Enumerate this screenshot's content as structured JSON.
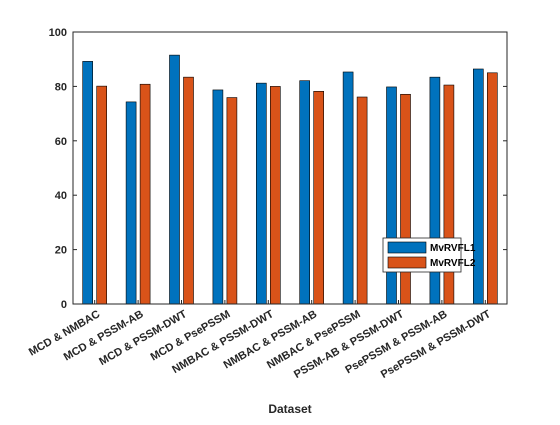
{
  "chart_data": {
    "type": "bar",
    "title": "",
    "xlabel": "Dataset",
    "ylabel": "",
    "ylim": [
      0,
      100
    ],
    "yticks": [
      0,
      20,
      40,
      60,
      80,
      100
    ],
    "grid": false,
    "legend_position": "bottom-right",
    "categories": [
      "MCD & NMBAC",
      "MCD & PSSM-AB",
      "MCD & PSSM-DWT",
      "MCD & PsePSSM",
      "NMBAC & PSSM-DWT",
      "NMBAC & PSSM-AB",
      "NMBAC & PsePSSM",
      "PSSM-AB & PSSM-DWT",
      "PsePSSM & PSSM-AB",
      "PsePSSM & PSSM-DWT"
    ],
    "series": [
      {
        "name": "MvRVFL1",
        "color": "#0072BD",
        "values": [
          89.2,
          74.3,
          91.5,
          78.7,
          81.2,
          82.1,
          85.3,
          79.8,
          83.4,
          86.4
        ]
      },
      {
        "name": "MvRVFL2",
        "color": "#D95319",
        "values": [
          80.1,
          80.8,
          83.4,
          75.9,
          80.0,
          78.2,
          76.1,
          77.1,
          80.5,
          85.0
        ]
      }
    ]
  }
}
